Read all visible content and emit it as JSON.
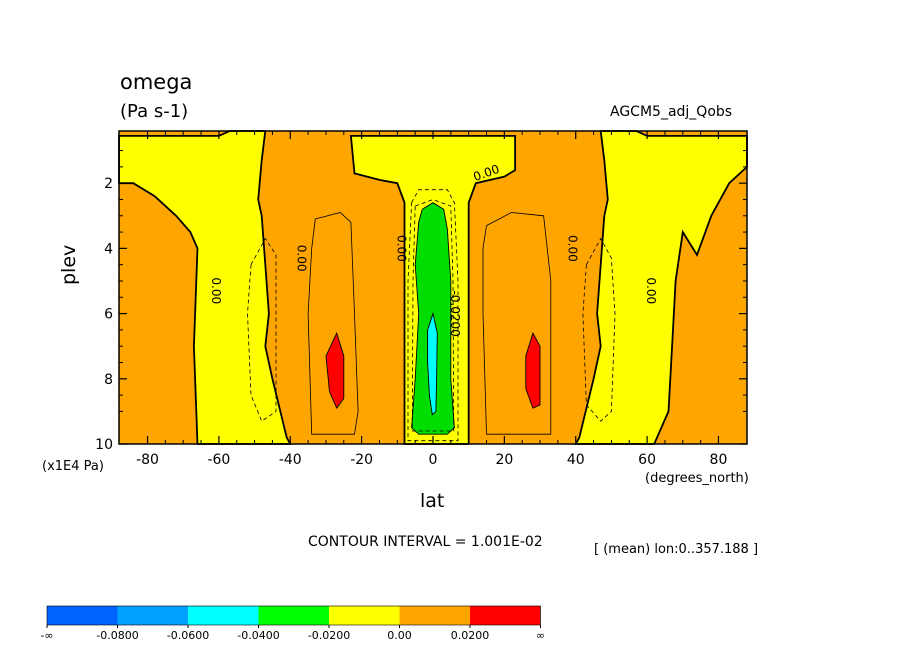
{
  "chart_data": {
    "type": "heatmap",
    "title": "omega",
    "units": "(Pa s-1)",
    "dataset": "AGCM5_adj_Qobs",
    "xlabel": "lat",
    "ylabel": "plev",
    "xunits": "(degrees_north)",
    "yunits": "(x1E4 Pa)",
    "xlim": [
      -88,
      88
    ],
    "ylim": [
      10,
      0.4
    ],
    "xticks": [
      "-80",
      "-60",
      "-40",
      "-20",
      "0",
      "20",
      "40",
      "60",
      "80"
    ],
    "yticks": [
      "2",
      "4",
      "6",
      "8",
      "10"
    ],
    "contour_interval": "CONTOUR INTERVAL = 1.001E-02",
    "mean_note": "[ (mean) lon:0..357.188 ]",
    "contour_labels": [
      "0.00",
      "0.00",
      "0.00",
      "0.00",
      "0.00",
      "0.00",
      "-0.0200"
    ],
    "colorbar": {
      "labels": [
        "-∞",
        "-0.0800",
        "-0.0600",
        "-0.0400",
        "-0.0200",
        "0.00",
        "0.0200",
        "∞"
      ],
      "colors": [
        "#0064ff",
        "#00a0ff",
        "#00ffff",
        "#00ff00",
        "#ffff00",
        "#ffa500",
        "#ff0000"
      ]
    },
    "colors": {
      "positive": "#ffa500",
      "weak_negative": "#ffff00",
      "moderate_negative": "#00dd00",
      "strong_negative": "#00ffff",
      "strong_positive": "#ff0000"
    }
  }
}
